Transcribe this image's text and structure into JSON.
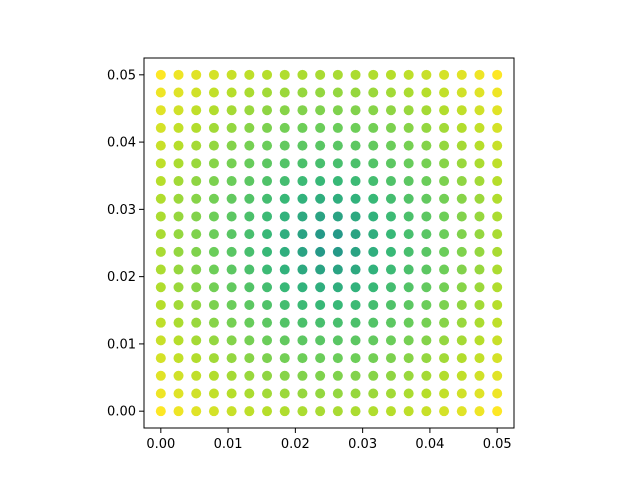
{
  "chart_data": {
    "type": "scatter",
    "title": "",
    "xlabel": "",
    "ylabel": "",
    "grid": false,
    "legend": "none",
    "xlim": [
      -0.0025,
      0.0525
    ],
    "ylim": [
      -0.0025,
      0.0525
    ],
    "x_ticks": [
      0.0,
      0.01,
      0.02,
      0.03,
      0.04,
      0.05
    ],
    "x_tick_labels": [
      "0.00",
      "0.01",
      "0.02",
      "0.03",
      "0.04",
      "0.05"
    ],
    "y_ticks": [
      0.0,
      0.01,
      0.02,
      0.03,
      0.04,
      0.05
    ],
    "y_tick_labels": [
      "0.00",
      "0.01",
      "0.02",
      "0.03",
      "0.04",
      "0.05"
    ],
    "grid_points": {
      "x_start": 0.0,
      "x_stop": 0.05,
      "x_count": 20,
      "y_start": 0.0,
      "y_stop": 0.05,
      "y_count": 20
    },
    "color_rule": "distance from center (0.025, 0.025), center teal to corner yellow",
    "colormap": "viridis",
    "color_range": [
      "#21918c",
      "#fde725"
    ]
  }
}
